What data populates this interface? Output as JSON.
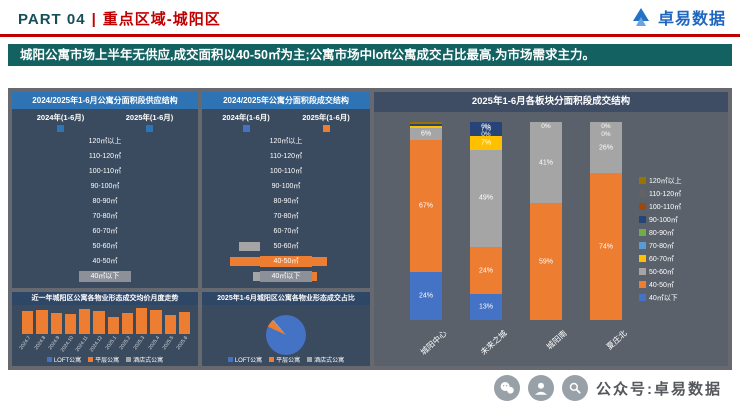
{
  "header": {
    "part": "PART 04",
    "separator": "|",
    "section": "重点区域-城阳区",
    "brand": "卓易数据"
  },
  "subtitle": {
    "text": "城阳公寓市场上半年无供应,成交面积以40-50㎡为主;公寓市场中loft公寓成交占比最高,为市场需求主力。"
  },
  "footer": {
    "wechat": "公众号:卓易数据"
  },
  "colors": {
    "accent_red": "#C00000",
    "teal_bar": "#136161",
    "panel_navy": "#3A4A5F",
    "title_blue": "#2E74B5",
    "title_navy": "#2F4767",
    "main_gray": "#66696F"
  },
  "chart_data": [
    {
      "id": "supply_structure",
      "type": "bar",
      "orientation": "butterfly",
      "title": "2024/2025年1-6月公寓分面积段供应结构",
      "categories": [
        "120㎡以上",
        "110-120㎡",
        "100-110㎡",
        "90-100㎡",
        "80-90㎡",
        "70-80㎡",
        "60-70㎡",
        "50-60㎡",
        "40-50㎡",
        "40㎡以下"
      ],
      "series": [
        {
          "name": "2024年(1-6月)",
          "color": "#2E75B6",
          "values": [
            0,
            0,
            0,
            0,
            0,
            0,
            0,
            0,
            0,
            0
          ]
        },
        {
          "name": "2025年(1-6月)",
          "color": "#2E75B6",
          "values": [
            0,
            0,
            0,
            0,
            0,
            0,
            0,
            0,
            0,
            0
          ]
        }
      ],
      "label_bg": [
        null,
        null,
        null,
        null,
        null,
        null,
        null,
        null,
        null,
        "#8B9099"
      ]
    },
    {
      "id": "deal_structure",
      "type": "bar",
      "orientation": "butterfly",
      "title": "2024/2025年公寓分面积段成交结构",
      "categories": [
        "120㎡以上",
        "110-120㎡",
        "100-110㎡",
        "90-100㎡",
        "80-90㎡",
        "70-80㎡",
        "60-70㎡",
        "50-60㎡",
        "40-50㎡",
        "40㎡以下"
      ],
      "series": [
        {
          "name": "2024年(1-6月)",
          "color": "#4472C4",
          "values": [
            0,
            0,
            0,
            0,
            0,
            0,
            0,
            38,
            55,
            13
          ]
        },
        {
          "name": "2025年(1-6月)",
          "color": "#ED7D31",
          "values": [
            0,
            0,
            0,
            0,
            0,
            0,
            0,
            0,
            27,
            9
          ]
        }
      ],
      "left_colors": [
        null,
        null,
        null,
        null,
        null,
        null,
        null,
        "#A5A5A5",
        "#ED7D31",
        "#A5A5A5"
      ],
      "right_colors": [
        null,
        null,
        null,
        null,
        null,
        null,
        null,
        null,
        "#ED7D31",
        "#ED7D31"
      ],
      "label_bg": [
        null,
        null,
        null,
        null,
        null,
        null,
        null,
        null,
        "#ED7D31",
        "#8B9099"
      ]
    },
    {
      "id": "block_deal_structure",
      "type": "bar",
      "stacked": true,
      "unit": "%",
      "ylim": [
        0,
        100
      ],
      "title": "2025年1-6月各板块分面积段成交结构",
      "categories": [
        "城阳中心",
        "未来之城",
        "城阳南",
        "夏庄北"
      ],
      "series": [
        {
          "name": "40㎡以下",
          "color": "#4472C4",
          "values": [
            24,
            13,
            0,
            0
          ]
        },
        {
          "name": "40-50㎡",
          "color": "#ED7D31",
          "values": [
            67,
            24,
            59,
            74
          ]
        },
        {
          "name": "50-60㎡",
          "color": "#A5A5A5",
          "values": [
            6,
            49,
            41,
            26
          ]
        },
        {
          "name": "60-70㎡",
          "color": "#FFC000",
          "values": [
            1,
            7,
            0,
            0
          ]
        },
        {
          "name": "70-80㎡",
          "color": "#5B9BD5",
          "values": [
            0,
            0,
            0,
            0
          ]
        },
        {
          "name": "80-90㎡",
          "color": "#70AD47",
          "values": [
            0,
            0,
            0,
            0
          ]
        },
        {
          "name": "90-100㎡",
          "color": "#264478",
          "values": [
            1,
            7,
            0,
            0
          ]
        },
        {
          "name": "100-110㎡",
          "color": "#9E480E",
          "values": [
            0,
            0,
            0,
            0
          ]
        },
        {
          "name": "110-120㎡",
          "color": "#636363",
          "values": [
            0,
            0,
            0,
            0
          ]
        },
        {
          "name": "120㎡以上",
          "color": "#997300",
          "values": [
            1,
            0,
            0,
            0
          ]
        }
      ],
      "top_zero_labels": [
        0,
        2,
        1,
        2
      ]
    },
    {
      "id": "price_trend",
      "type": "bar",
      "title": "近一年城阳区公寓各物业形态成交均价月度走势",
      "categories": [
        "2024.7",
        "2024.8",
        "2024.9",
        "2024.10",
        "2024.11",
        "2024.12",
        "2025.1",
        "2025.2",
        "2025.3",
        "2025.4",
        "2025.5",
        "2025.6"
      ],
      "series": [
        {
          "name": "成交均价",
          "color": "#ED7D31",
          "values": [
            85,
            90,
            78,
            75,
            95,
            86,
            63,
            77,
            97,
            88,
            73,
            82
          ]
        }
      ],
      "legend": [
        {
          "name": "LOFT公寓",
          "color": "#4472C4"
        },
        {
          "name": "平层公寓",
          "color": "#ED7D31"
        },
        {
          "name": "酒店式公寓",
          "color": "#A5A5A5"
        }
      ]
    },
    {
      "id": "property_type_share",
      "type": "pie",
      "title": "2025年1-6月城阳区公寓各物业形态成交占比",
      "start_angle": 320,
      "slices": [
        {
          "name": "LOFT公寓",
          "value": 93,
          "color": "#4472C4"
        },
        {
          "name": "平层公寓",
          "value": 6,
          "color": "#ED7D31"
        },
        {
          "name": "酒店式公寓",
          "value": 1,
          "color": "#A5A5A5"
        }
      ]
    }
  ]
}
